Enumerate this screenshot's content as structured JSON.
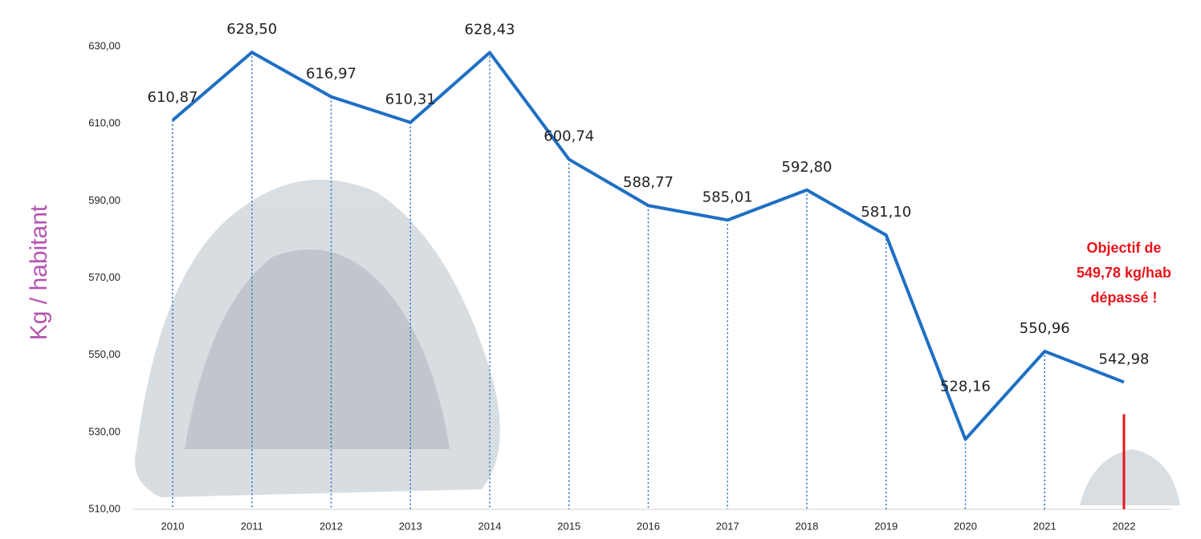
{
  "chart_data": {
    "type": "line",
    "y_label": "Kg / habitant",
    "categories": [
      "2010",
      "2011",
      "2012",
      "2013",
      "2014",
      "2015",
      "2016",
      "2017",
      "2018",
      "2019",
      "2020",
      "2021",
      "2022"
    ],
    "series": [
      {
        "color": "#1f6fc4",
        "values": [
          610.87,
          628.5,
          616.97,
          610.31,
          628.43,
          600.74,
          588.77,
          585.01,
          592.8,
          581.1,
          528.16,
          550.96,
          542.98
        ],
        "value_labels": [
          "610,87",
          "628,50",
          "616,97",
          "610,31",
          "628,43",
          "600,74",
          "588,77",
          "585,01",
          "592,80",
          "581,10",
          "528,16",
          "550,96",
          "542,98"
        ]
      }
    ],
    "ylim": [
      510,
      630
    ],
    "yticks": [
      {
        "value": 510,
        "label": "510,00"
      },
      {
        "value": 530,
        "label": "530,00"
      },
      {
        "value": 550,
        "label": "550,00"
      },
      {
        "value": 570,
        "label": "570,00"
      },
      {
        "value": 590,
        "label": "590,00"
      },
      {
        "value": 610,
        "label": "610,00"
      },
      {
        "value": 630,
        "label": "630,00"
      }
    ],
    "annotation": {
      "lines": [
        "Objectif de",
        "549,78 kg/hab",
        "dépassé !"
      ],
      "color": "#e8141b"
    }
  }
}
